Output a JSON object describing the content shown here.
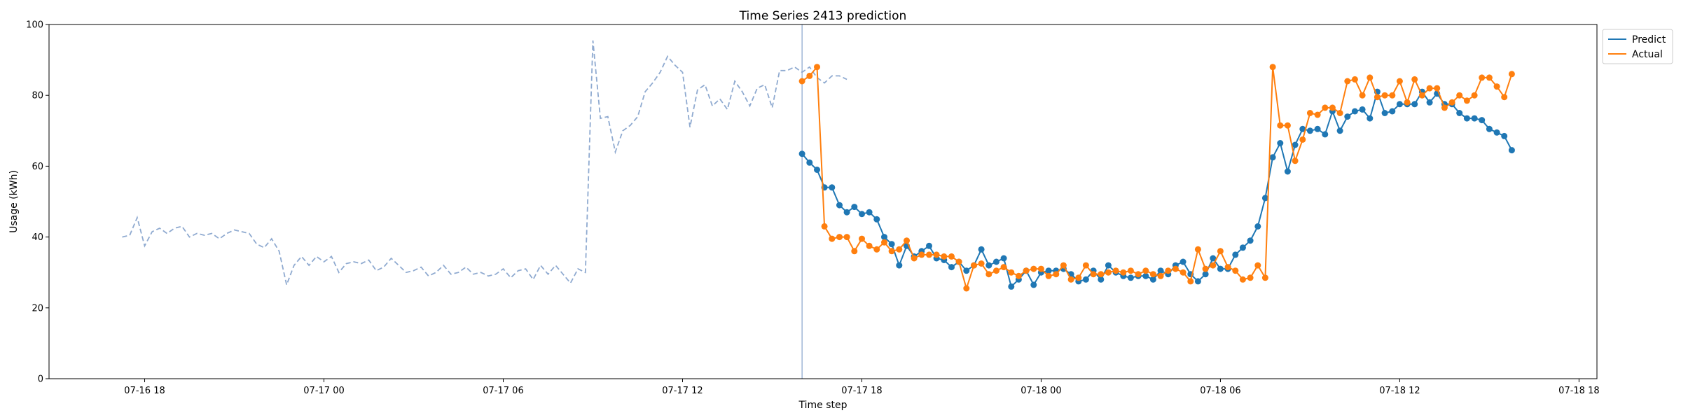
{
  "chart_data": {
    "type": "line",
    "title": "Time Series 2413 prediction",
    "xlabel": "Time step",
    "ylabel": "Usage (kWh)",
    "ylim": [
      0,
      100
    ],
    "xlim": [
      "2024-07-16T14:48",
      "2024-07-18T18:36"
    ],
    "x_ticks": [
      {
        "t": "2024-07-16T18:00",
        "label": "07-16 18"
      },
      {
        "t": "2024-07-17T00:00",
        "label": "07-17 00"
      },
      {
        "t": "2024-07-17T06:00",
        "label": "07-17 06"
      },
      {
        "t": "2024-07-17T12:00",
        "label": "07-17 12"
      },
      {
        "t": "2024-07-17T18:00",
        "label": "07-17 18"
      },
      {
        "t": "2024-07-18T00:00",
        "label": "07-18 00"
      },
      {
        "t": "2024-07-18T06:00",
        "label": "07-18 06"
      },
      {
        "t": "2024-07-18T12:00",
        "label": "07-18 12"
      },
      {
        "t": "2024-07-18T18:00",
        "label": "07-18 18"
      }
    ],
    "y_ticks": [
      0,
      20,
      40,
      60,
      80,
      100
    ],
    "grid": false,
    "legend_position": "upper-right-outside",
    "forecast_start": "2024-07-17T16:00",
    "history": {
      "start": "2024-07-16T17:15",
      "step_minutes": 15,
      "color": "#8faad0",
      "style": "dashed",
      "values": [
        40,
        40.5,
        45.5,
        37.5,
        41.5,
        42.5,
        41,
        42.5,
        43,
        40,
        41,
        40.5,
        41,
        39.5,
        41,
        42,
        41.5,
        41,
        38,
        37,
        39.5,
        36,
        26.5,
        32,
        34.5,
        32,
        34.5,
        33,
        34.5,
        30,
        32.5,
        33,
        32.5,
        33.5,
        30.5,
        31.5,
        34,
        32,
        30,
        30.5,
        31.5,
        29,
        30,
        32,
        29.5,
        30,
        31.5,
        29.5,
        30,
        29,
        29.5,
        31,
        28.5,
        30.5,
        31,
        28,
        32,
        29.5,
        32,
        29.5,
        27,
        31,
        30,
        95.5,
        73.5,
        74,
        64,
        70,
        71.5,
        74,
        81,
        83.5,
        86.5,
        91,
        88.5,
        86.5,
        71,
        81.5,
        83,
        77,
        79,
        76,
        84,
        81,
        77,
        82,
        83,
        76.5,
        87,
        87,
        88,
        86.5,
        88,
        85,
        83.5,
        85.5,
        85.5,
        84.5
      ]
    },
    "series": [
      {
        "name": "Predict",
        "color": "#1f77b4",
        "start": "2024-07-17T16:00",
        "step_minutes": 15,
        "values": [
          63.5,
          61,
          59,
          54,
          54,
          49,
          47,
          48.5,
          46.5,
          47,
          45,
          40,
          38,
          32,
          37.5,
          34.5,
          36,
          37.5,
          34,
          33.5,
          31.5,
          33,
          30.5,
          32,
          36.5,
          32,
          33,
          34,
          26,
          28,
          30.5,
          26.5,
          30,
          30.5,
          30.5,
          31,
          29.5,
          27.5,
          28,
          30.5,
          28,
          32,
          30,
          29,
          28.5,
          29,
          29,
          28,
          30.5,
          29.5,
          32,
          33,
          29.5,
          27.5,
          29.5,
          34,
          31,
          31,
          35,
          37,
          39,
          43,
          51,
          62.5,
          66.5,
          58.5,
          66,
          70.5,
          70,
          70.5,
          69,
          75.5,
          70,
          74,
          75.5,
          76,
          73.5,
          81,
          75,
          75.5,
          77.5,
          77.5,
          77.5,
          81,
          78,
          80.5,
          77.5,
          77.5,
          75,
          73.5,
          73.5,
          73,
          70.5,
          69.5,
          68.5,
          64.5
        ]
      },
      {
        "name": "Actual",
        "color": "#ff7f0e",
        "start": "2024-07-17T16:00",
        "step_minutes": 15,
        "values": [
          84,
          85.5,
          88,
          43,
          39.5,
          40,
          40,
          36,
          39.5,
          37.5,
          36.5,
          38.5,
          36,
          36.5,
          39,
          34,
          35,
          35,
          35,
          34.5,
          34.5,
          33,
          25.5,
          32,
          32.5,
          29.5,
          30.5,
          31.5,
          30,
          29,
          30.5,
          31,
          31,
          29,
          29.5,
          32,
          28,
          28.5,
          32,
          29.5,
          29.5,
          30,
          30.5,
          30,
          30.5,
          29.5,
          30.5,
          29.5,
          29,
          30.5,
          31,
          30,
          27.5,
          36.5,
          31,
          32,
          36,
          31.5,
          30.5,
          28,
          28.5,
          32,
          28.5,
          88,
          71.5,
          71.5,
          61.5,
          67.5,
          75,
          74.5,
          76.5,
          76.5,
          75,
          84,
          84.5,
          80,
          85,
          79.5,
          80,
          80,
          84,
          78,
          84.5,
          80,
          82,
          82,
          76.5,
          78,
          80,
          78.5,
          80,
          85,
          85,
          82.5,
          79.5,
          86
        ]
      }
    ]
  }
}
